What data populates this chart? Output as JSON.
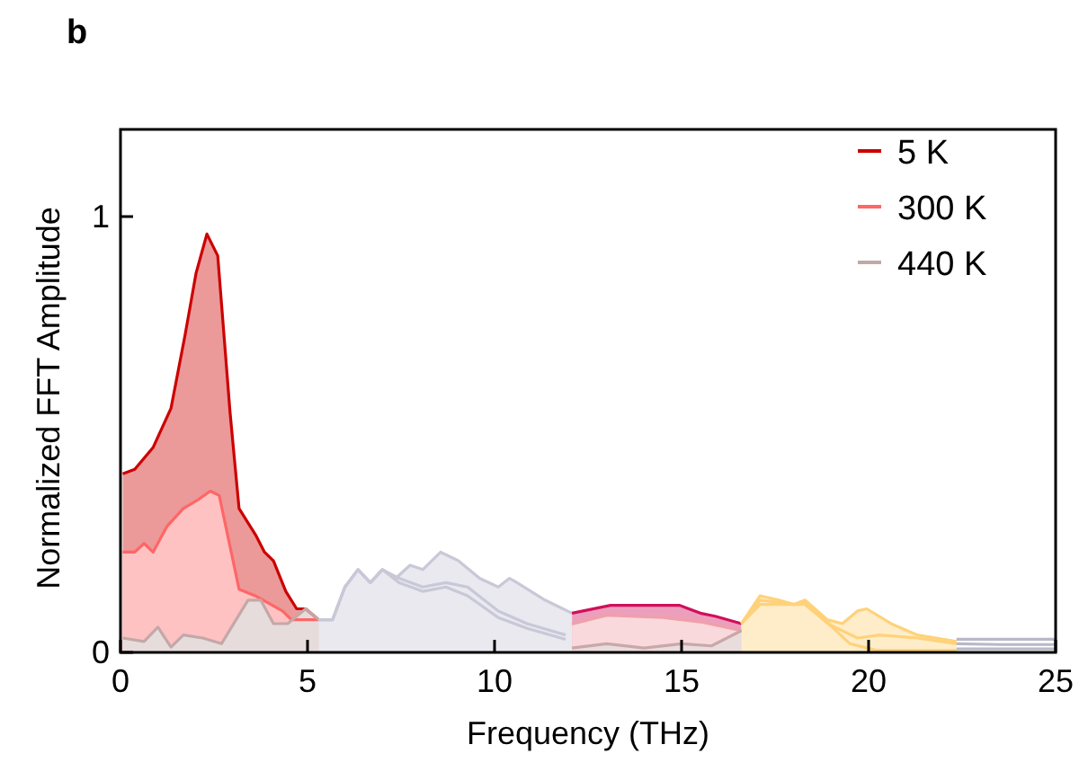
{
  "chart_data": {
    "type": "area",
    "title": "b",
    "xlabel": "Frequency (THz)",
    "ylabel": "Normalized FFT Amplitude",
    "xlim": [
      0,
      25
    ],
    "ylim": [
      0,
      1.2
    ],
    "xticks": [
      0,
      5,
      10,
      15,
      20,
      25
    ],
    "yticks": [
      0,
      1
    ],
    "legend": "top right",
    "series": [
      {
        "name": "5 K",
        "color": "#cc0000",
        "x": [
          0.06,
          0.38,
          0.87,
          1.35,
          1.73,
          2.02,
          2.31,
          2.6,
          2.93,
          3.17,
          3.61,
          3.85,
          4.09,
          4.42,
          4.71,
          4.95,
          5.3
        ],
        "values": [
          0.41,
          0.42,
          0.47,
          0.56,
          0.73,
          0.87,
          0.96,
          0.91,
          0.55,
          0.33,
          0.27,
          0.23,
          0.21,
          0.14,
          0.1,
          0.1,
          0.075
        ]
      },
      {
        "name": "300 K",
        "color": "#ff6666",
        "x": [
          0.06,
          0.38,
          0.63,
          0.87,
          1.25,
          1.68,
          2.07,
          2.4,
          2.64,
          3.17,
          3.6,
          4.33,
          4.57,
          5.0,
          5.3
        ],
        "values": [
          0.23,
          0.23,
          0.25,
          0.23,
          0.29,
          0.33,
          0.35,
          0.37,
          0.36,
          0.145,
          0.13,
          0.095,
          0.075,
          0.075,
          0.075
        ]
      },
      {
        "name": "440 K",
        "color": "#c4a8a8",
        "x": [
          0.06,
          0.63,
          1.0,
          1.35,
          1.68,
          2.2,
          2.7,
          3.41,
          3.75,
          4.09,
          4.47,
          4.95,
          5.3
        ],
        "values": [
          0.033,
          0.025,
          0.058,
          0.012,
          0.04,
          0.033,
          0.02,
          0.12,
          0.12,
          0.066,
          0.066,
          0.1,
          0.075
        ]
      },
      {
        "color": "#c8c8d8",
        "x": [
          5.3,
          5.67,
          6.0,
          6.35,
          6.68,
          7.0,
          7.36,
          7.74,
          8.08,
          8.56,
          9.04,
          9.6,
          10.1,
          10.4,
          10.6,
          11.35,
          12.07
        ],
        "values": [
          0.075,
          0.075,
          0.15,
          0.19,
          0.16,
          0.19,
          0.17,
          0.2,
          0.19,
          0.23,
          0.21,
          0.17,
          0.15,
          0.17,
          0.16,
          0.12,
          0.09
        ]
      },
      {
        "type": "line",
        "color": "#c8c8d8",
        "x": [
          5.3,
          5.67,
          6.0,
          6.35,
          6.68,
          7.0,
          7.45,
          8.08,
          8.7,
          9.28,
          10.1,
          10.87,
          11.9
        ],
        "values": [
          0.075,
          0.075,
          0.15,
          0.19,
          0.16,
          0.19,
          0.17,
          0.15,
          0.16,
          0.15,
          0.095,
          0.066,
          0.04
        ]
      },
      {
        "type": "line",
        "color": "#c8c8d8",
        "x": [
          5.3,
          5.67,
          6.0,
          6.35,
          6.68,
          7.0,
          7.45,
          8.08,
          8.7,
          9.28,
          10.1,
          10.87,
          11.9
        ],
        "values": [
          0.075,
          0.075,
          0.15,
          0.19,
          0.16,
          0.19,
          0.16,
          0.14,
          0.15,
          0.13,
          0.08,
          0.055,
          0.03
        ]
      },
      {
        "color": "#d0105a",
        "x": [
          12.07,
          13.1,
          14.95,
          15.5,
          15.9,
          16.6
        ],
        "values": [
          0.09,
          0.108,
          0.108,
          0.09,
          0.083,
          0.066
        ]
      },
      {
        "color": "#f0a0a8",
        "x": [
          12.07,
          13.0,
          14.5,
          15.5,
          16.6
        ],
        "values": [
          0.065,
          0.085,
          0.08,
          0.07,
          0.05
        ]
      },
      {
        "color": "#c8a8a8",
        "x": [
          12.07,
          13.0,
          14.0,
          15.0,
          15.8,
          16.6
        ],
        "values": [
          0.01,
          0.02,
          0.01,
          0.02,
          0.015,
          0.05
        ]
      },
      {
        "color": "#ffd27a",
        "x": [
          16.6,
          17.1,
          17.6,
          18.0,
          18.3,
          18.9,
          19.3,
          19.7,
          19.95,
          20.6,
          21.3,
          22.35
        ],
        "values": [
          0.066,
          0.13,
          0.12,
          0.11,
          0.12,
          0.075,
          0.066,
          0.095,
          0.1,
          0.066,
          0.04,
          0.025
        ]
      },
      {
        "type": "line",
        "color": "#ffd27a",
        "x": [
          16.6,
          17.1,
          17.6,
          18.0,
          18.3,
          19.0,
          19.7,
          20.3,
          21.3,
          22.35
        ],
        "values": [
          0.066,
          0.12,
          0.115,
          0.11,
          0.115,
          0.062,
          0.033,
          0.04,
          0.033,
          0.02
        ]
      },
      {
        "type": "line",
        "color": "#ffd27a",
        "x": [
          16.6,
          17.1,
          17.6,
          18.3,
          19.0,
          19.5,
          20.2,
          21.3,
          22.35
        ],
        "values": [
          0.066,
          0.11,
          0.11,
          0.11,
          0.06,
          0.02,
          0.005,
          0.005,
          0.005
        ]
      },
      {
        "type": "line",
        "color": "#b8b8c8",
        "x": [
          22.35,
          23.5,
          25
        ],
        "values": [
          0.03,
          0.03,
          0.03
        ]
      },
      {
        "type": "line",
        "color": "#b8b8c8",
        "x": [
          22.35,
          23.5,
          25
        ],
        "values": [
          0.02,
          0.018,
          0.018
        ]
      },
      {
        "type": "line",
        "color": "#b8b8c8",
        "x": [
          22.35,
          23.5,
          25
        ],
        "values": [
          0.008,
          0.008,
          0.008
        ]
      }
    ]
  }
}
